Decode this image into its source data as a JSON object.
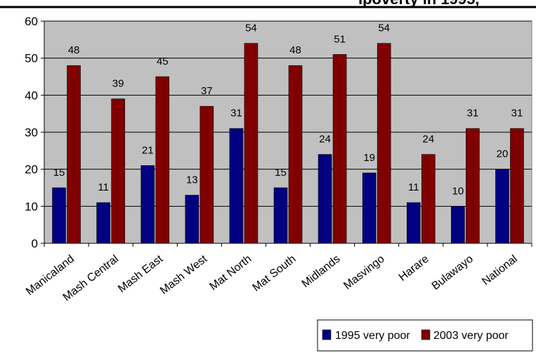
{
  "title_fragment": "ipoverty in 1995, ",
  "chart_data": {
    "type": "bar",
    "categories": [
      "Manicaland",
      "Mash Central",
      "Mash East",
      "Mash West",
      "Mat North",
      "Mat South",
      "Midlands",
      "Masvingo",
      "Harare",
      "Bulawayo",
      "National"
    ],
    "series": [
      {
        "name": "1995 very poor",
        "color": "#000080",
        "values": [
          15,
          11,
          21,
          13,
          31,
          15,
          24,
          19,
          11,
          10,
          20
        ]
      },
      {
        "name": "2003 very poor",
        "color": "#800000",
        "values": [
          48,
          39,
          45,
          37,
          54,
          48,
          51,
          54,
          24,
          31,
          31
        ]
      }
    ],
    "ylim": [
      0,
      60
    ],
    "yticks": [
      0,
      10,
      20,
      30,
      40,
      50,
      60
    ],
    "plot_background": "#c0c0c0",
    "grid": true,
    "legend_position": "bottom-right"
  }
}
